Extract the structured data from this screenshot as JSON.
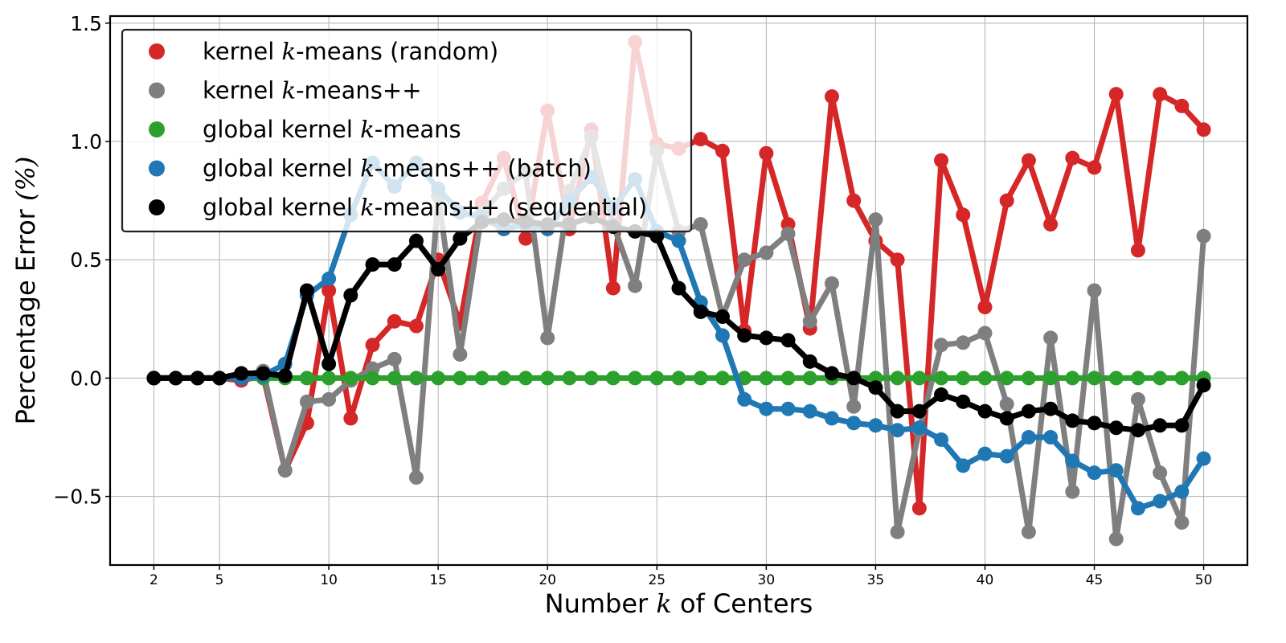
{
  "chart_data": {
    "type": "line",
    "title": "",
    "xlabel_parts": [
      "Number ",
      "k",
      " of Centers"
    ],
    "ylabel_parts": [
      "Percentage Error ",
      "(%)"
    ],
    "xlim": [
      0,
      52
    ],
    "ylim": [
      -0.79,
      1.53
    ],
    "x_ticks": [
      2,
      5,
      10,
      15,
      20,
      25,
      30,
      35,
      40,
      45,
      50
    ],
    "x_tick_labels": [
      "2",
      "5",
      "10",
      "15",
      "20",
      "25",
      "30",
      "35",
      "40",
      "45",
      "50"
    ],
    "y_ticks": [
      -0.5,
      0.0,
      0.5,
      1.0,
      1.5
    ],
    "y_tick_labels": [
      "−0.5",
      "0.0",
      "0.5",
      "1.0",
      "1.5"
    ],
    "grid": true,
    "legend_position": "top-left",
    "x": [
      2,
      3,
      4,
      5,
      6,
      7,
      8,
      9,
      10,
      11,
      12,
      13,
      14,
      15,
      16,
      17,
      18,
      19,
      20,
      21,
      22,
      23,
      24,
      25,
      26,
      27,
      28,
      29,
      30,
      31,
      32,
      33,
      34,
      35,
      36,
      37,
      38,
      39,
      40,
      41,
      42,
      43,
      44,
      45,
      46,
      47,
      48,
      49,
      50
    ],
    "series": [
      {
        "key": "random",
        "legend_parts": [
          "kernel ",
          "k",
          "-means (random)"
        ],
        "color": "#d62728",
        "values": [
          0,
          0,
          0,
          0,
          -0.01,
          0.01,
          -0.39,
          -0.19,
          0.37,
          -0.17,
          0.14,
          0.24,
          0.22,
          0.5,
          0.23,
          0.74,
          0.93,
          0.59,
          1.13,
          0.63,
          1.05,
          0.38,
          1.42,
          0.99,
          0.97,
          1.01,
          0.96,
          0.2,
          0.95,
          0.65,
          0.21,
          1.19,
          0.75,
          0.58,
          0.5,
          -0.55,
          0.92,
          0.69,
          0.3,
          0.75,
          0.92,
          0.65,
          0.93,
          0.89,
          1.2,
          0.54,
          1.2,
          1.15,
          1.05
        ]
      },
      {
        "key": "kpp",
        "legend_parts": [
          "kernel ",
          "k",
          "-means++"
        ],
        "color": "#7f7f7f",
        "values": [
          0,
          0,
          0,
          0,
          0.01,
          0.03,
          -0.39,
          -0.1,
          -0.09,
          -0.01,
          0.04,
          0.08,
          -0.42,
          0.77,
          0.1,
          0.7,
          0.8,
          0.87,
          0.17,
          0.79,
          1.02,
          0.65,
          0.39,
          0.96,
          0.62,
          0.65,
          0.26,
          0.5,
          0.53,
          0.61,
          0.24,
          0.4,
          -0.12,
          0.67,
          -0.65,
          -0.22,
          0.14,
          0.15,
          0.19,
          -0.11,
          -0.65,
          0.17,
          -0.48,
          0.37,
          -0.68,
          -0.09,
          -0.4,
          -0.61,
          0.6
        ]
      },
      {
        "key": "global",
        "legend_parts": [
          "global kernel ",
          "k",
          "-means"
        ],
        "color": "#2ca02c",
        "values": [
          0,
          0,
          0,
          0,
          0,
          0,
          0,
          0,
          0,
          0,
          0,
          0,
          0,
          0,
          0,
          0,
          0,
          0,
          0,
          0,
          0,
          0,
          0,
          0,
          0,
          0,
          0,
          0,
          0,
          0,
          0,
          0,
          0,
          0,
          0,
          0,
          0,
          0,
          0,
          0,
          0,
          0,
          0,
          0,
          0,
          0,
          0,
          0,
          0
        ]
      },
      {
        "key": "batch",
        "legend_parts": [
          "global kernel ",
          "k",
          "-means++ (batch)"
        ],
        "color": "#1f77b4",
        "values": [
          0,
          0,
          0,
          0,
          0,
          0.01,
          0.06,
          0.35,
          0.42,
          0.69,
          0.91,
          0.81,
          0.91,
          0.8,
          0.7,
          0.68,
          0.63,
          0.65,
          0.63,
          0.75,
          0.85,
          0.72,
          0.84,
          0.62,
          0.58,
          0.32,
          0.18,
          -0.09,
          -0.13,
          -0.13,
          -0.14,
          -0.17,
          -0.19,
          -0.2,
          -0.22,
          -0.21,
          -0.26,
          -0.37,
          -0.32,
          -0.33,
          -0.25,
          -0.25,
          -0.35,
          -0.4,
          -0.39,
          -0.55,
          -0.52,
          -0.48,
          -0.34
        ]
      },
      {
        "key": "sequential",
        "legend_parts": [
          "global kernel ",
          "k",
          "-means++ (sequential)"
        ],
        "color": "#000000",
        "values": [
          0,
          0,
          0,
          0,
          0.02,
          0.02,
          0.01,
          0.37,
          0.06,
          0.35,
          0.48,
          0.48,
          0.58,
          0.46,
          0.59,
          0.66,
          0.67,
          0.66,
          0.65,
          0.65,
          0.68,
          0.64,
          0.62,
          0.6,
          0.38,
          0.28,
          0.26,
          0.18,
          0.17,
          0.16,
          0.07,
          0.02,
          0,
          -0.04,
          -0.14,
          -0.14,
          -0.07,
          -0.1,
          -0.14,
          -0.17,
          -0.14,
          -0.13,
          -0.18,
          -0.19,
          -0.21,
          -0.22,
          -0.2,
          -0.2,
          -0.03
        ]
      }
    ]
  }
}
